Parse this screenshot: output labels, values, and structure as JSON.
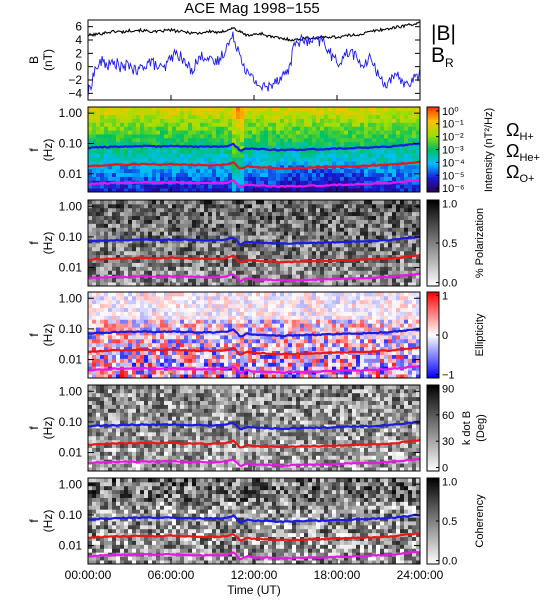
{
  "chart_data": {
    "title": "ACE Mag 1998−155",
    "xlabel": "Time (UT)",
    "x_ticks": [
      "00:00:00",
      "06:00:00",
      "12:00:00",
      "18:00:00",
      "24:00:00"
    ],
    "x_range_hours": [
      0,
      24
    ],
    "grid": false,
    "panels": [
      {
        "type": "line",
        "ylabel_top": "B",
        "ylabel_unit": "(nT)",
        "ylim": [
          -5,
          7
        ],
        "y_ticks": [
          "6",
          "4",
          "2",
          "0",
          "−2",
          "−4"
        ],
        "y_tick_values": [
          6,
          4,
          2,
          0,
          -2,
          -4
        ],
        "legend_placement": "right",
        "series": [
          {
            "name": "|B|",
            "color": "#000000",
            "x": [
              0,
              0.5,
              1,
              1.5,
              2,
              2.5,
              3,
              3.5,
              4,
              4.5,
              5,
              5.5,
              6,
              6.5,
              7,
              7.5,
              8,
              8.5,
              9,
              9.5,
              10,
              10.5,
              11,
              11.5,
              12,
              12.5,
              13,
              13.5,
              14,
              14.5,
              15,
              15.5,
              16,
              16.5,
              17,
              17.5,
              18,
              18.5,
              19,
              19.5,
              20,
              20.5,
              21,
              21.5,
              22,
              22.5,
              23,
              23.5,
              24
            ],
            "values": [
              4.7,
              4.8,
              5.0,
              5.2,
              5.3,
              5.2,
              5.4,
              5.5,
              5.4,
              5.3,
              5.2,
              5.4,
              5.5,
              5.3,
              5.2,
              5.1,
              5.0,
              5.2,
              5.3,
              5.0,
              5.5,
              5.8,
              5.2,
              4.7,
              4.8,
              5.0,
              4.6,
              4.4,
              4.2,
              4.1,
              4.0,
              4.2,
              4.3,
              4.3,
              4.4,
              4.5,
              4.4,
              4.6,
              4.7,
              4.8,
              5.0,
              5.3,
              5.5,
              5.6,
              5.8,
              6.0,
              6.2,
              6.4,
              6.5
            ]
          },
          {
            "name": "B",
            "subscript": "R",
            "color": "#1b1be6",
            "x": [
              0,
              0.5,
              1,
              1.5,
              2,
              2.5,
              3,
              3.5,
              4,
              4.5,
              5,
              5.5,
              6,
              6.5,
              7,
              7.5,
              8,
              8.5,
              9,
              9.5,
              10,
              10.5,
              11,
              11.5,
              12,
              12.5,
              13,
              13.5,
              14,
              14.5,
              15,
              15.5,
              16,
              16.5,
              17,
              17.5,
              18,
              18.5,
              19,
              19.5,
              20,
              20.5,
              21,
              21.5,
              22,
              22.5,
              23,
              23.5,
              24
            ],
            "values": [
              -4.2,
              -0.5,
              0.8,
              0.2,
              0.6,
              -0.3,
              0.4,
              -1.0,
              0.2,
              0.8,
              0.0,
              -0.5,
              1.5,
              2.0,
              0.5,
              -0.5,
              1.2,
              1.8,
              0.4,
              1.0,
              3.0,
              4.5,
              2.0,
              -1.0,
              -2.0,
              -3.0,
              -3.2,
              -2.0,
              -1.5,
              -0.5,
              3.8,
              3.9,
              3.7,
              3.8,
              3.9,
              2.0,
              0.5,
              1.5,
              2.5,
              1.0,
              0.0,
              1.5,
              -1.5,
              -2.5,
              -2.0,
              -1.5,
              -2.8,
              -2.0,
              -1.0
            ]
          }
        ]
      },
      {
        "type": "heatmap",
        "ylabel_top": "f",
        "ylabel_unit": "(Hz)",
        "yscale": "log",
        "ylim": [
          0.0025,
          1.6
        ],
        "y_ticks": [
          "1.00",
          "0.10",
          "0.01"
        ],
        "y_tick_values": [
          1,
          0.1,
          0.01
        ],
        "colorbar_label": "Intensity (nT²/Hz)",
        "colorbar_ticks": [
          "10⁰",
          "10⁻¹",
          "10⁻²",
          "10⁻³",
          "10⁻⁴",
          "10⁻⁵",
          "10⁻⁶"
        ],
        "colorbar_range": [
          -6.3,
          0.3
        ],
        "colors": [
          "#2a0050",
          "#1a1ad8",
          "#00bfff",
          "#00c060",
          "#a0e000",
          "#ffc000",
          "#ff3000"
        ],
        "legend_placement": "right",
        "legend": [
          {
            "symbol": "Ω",
            "subscript": "H+",
            "color": "#1b1be6"
          },
          {
            "symbol": "Ω",
            "subscript": "He+",
            "color": "#e81818"
          },
          {
            "symbol": "Ω",
            "subscript": "O+",
            "color": "#e818e8"
          }
        ]
      },
      {
        "type": "heatmap",
        "ylabel_top": "f",
        "ylabel_unit": "(Hz)",
        "yscale": "log",
        "y_ticks": [
          "1.00",
          "0.10",
          "0.01"
        ],
        "y_tick_values": [
          1,
          0.1,
          0.01
        ],
        "colorbar_label": "% Polarization",
        "colorbar_ticks": [
          "1.0",
          "0.5",
          "0.0"
        ],
        "colorbar_tick_values": [
          1,
          0.5,
          0
        ],
        "colors": [
          "#ffffff",
          "#000000"
        ]
      },
      {
        "type": "heatmap",
        "ylabel_top": "f",
        "ylabel_unit": "(Hz)",
        "yscale": "log",
        "y_ticks": [
          "1.00",
          "0.10",
          "0.01"
        ],
        "y_tick_values": [
          1,
          0.1,
          0.01
        ],
        "colorbar_label": "Ellipticity",
        "colorbar_ticks": [
          "1",
          "0",
          "−1"
        ],
        "colorbar_tick_values": [
          1,
          0,
          -1
        ],
        "colors": [
          "#0000ff",
          "#ffffff",
          "#ff0000"
        ]
      },
      {
        "type": "heatmap",
        "ylabel_top": "f",
        "ylabel_unit": "(Hz)",
        "yscale": "log",
        "y_ticks": [
          "1.00",
          "0.10",
          "0.01"
        ],
        "y_tick_values": [
          1,
          0.1,
          0.01
        ],
        "colorbar_label": "k dot B",
        "colorbar_unit": "(Deg)",
        "colorbar_ticks": [
          "90",
          "60",
          "30",
          "0"
        ],
        "colorbar_tick_values": [
          90,
          60,
          30,
          0
        ],
        "colors": [
          "#ffffff",
          "#000000"
        ]
      },
      {
        "type": "heatmap",
        "ylabel_top": "f",
        "ylabel_unit": "(Hz)",
        "yscale": "log",
        "y_ticks": [
          "1.00",
          "0.10",
          "0.01"
        ],
        "y_tick_values": [
          1,
          0.1,
          0.01
        ],
        "colorbar_label": "Coherency",
        "colorbar_ticks": [
          "1.0",
          "0.5",
          "0.0"
        ],
        "colorbar_tick_values": [
          1,
          0.5,
          0
        ],
        "colors": [
          "#ffffff",
          "#000000"
        ]
      }
    ],
    "gyrofrequency_lines_hz": {
      "x": [
        0,
        1,
        2,
        3,
        4,
        5,
        6,
        7,
        8,
        9,
        10,
        10.5,
        11,
        11.5,
        12,
        13,
        14,
        15,
        16,
        17,
        18,
        19,
        20,
        21,
        22,
        23,
        24
      ],
      "H+": [
        0.072,
        0.076,
        0.078,
        0.08,
        0.082,
        0.08,
        0.082,
        0.08,
        0.078,
        0.077,
        0.08,
        0.095,
        0.055,
        0.07,
        0.066,
        0.063,
        0.06,
        0.062,
        0.064,
        0.065,
        0.068,
        0.07,
        0.072,
        0.076,
        0.08,
        0.09,
        0.1
      ],
      "He+": [
        0.018,
        0.019,
        0.02,
        0.02,
        0.021,
        0.02,
        0.021,
        0.02,
        0.0195,
        0.019,
        0.02,
        0.024,
        0.014,
        0.018,
        0.0165,
        0.016,
        0.015,
        0.0155,
        0.016,
        0.0163,
        0.017,
        0.0175,
        0.018,
        0.019,
        0.02,
        0.0225,
        0.025
      ],
      "O+": [
        0.0045,
        0.0048,
        0.005,
        0.005,
        0.0052,
        0.005,
        0.0052,
        0.005,
        0.0049,
        0.0048,
        0.005,
        0.006,
        0.0035,
        0.0045,
        0.0041,
        0.004,
        0.0038,
        0.0039,
        0.004,
        0.0041,
        0.0043,
        0.0044,
        0.0045,
        0.0048,
        0.005,
        0.0056,
        0.0062
      ]
    }
  }
}
